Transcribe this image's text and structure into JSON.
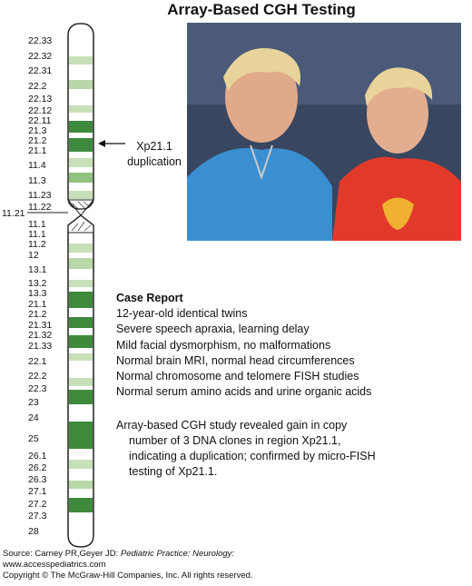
{
  "title": "Array-Based CGH Testing",
  "ideogram": {
    "centromere_label": "11.21",
    "p_arm_bands": [
      "22.33",
      "22.32",
      "22.31",
      "22.2",
      "22.13",
      "22.12",
      "22.11",
      "21.3",
      "21.2",
      "21.1",
      "11.4",
      "11.3",
      "11.23",
      "11.22"
    ],
    "q_arm_bands": [
      "11.1",
      "11.1",
      "11.2",
      "12",
      "13.1",
      "13.2",
      "13.3",
      "21.1",
      "21.2",
      "21.31",
      "21.32",
      "21.33",
      "22.1",
      "22.2",
      "22.3",
      "23",
      "24",
      "25",
      "26.1",
      "26.2",
      "26.3",
      "27.1",
      "27.2",
      "27.3",
      "28"
    ],
    "colors": {
      "dark": "#3d8a3d",
      "light": "#b8d8a8",
      "outline": "#222222"
    }
  },
  "annotation": {
    "line1": "Xp21.1",
    "line2": "duplication"
  },
  "photo": {
    "description_icon": "twins-photo"
  },
  "case_report": {
    "heading": "Case Report",
    "lines": [
      "12-year-old identical twins",
      "Severe speech apraxia, learning delay",
      "Mild facial dysmorphism, no malformations",
      "Normal brain MRI, normal head circumferences",
      "Normal chromosome and telomere FISH studies",
      "Normal serum amino acids and urine organic acids"
    ]
  },
  "summary": {
    "line1": "Array-based CGH study revealed gain in copy",
    "line2": "number of 3 DNA clones in region Xp21.1,",
    "line3": "indicating a duplication; confirmed by micro-FISH",
    "line4": "testing of Xp21.1."
  },
  "footer": {
    "source_prefix": "Source: Carney PR,Geyer JD: ",
    "source_title": "Pediatric Practice: Neurology:",
    "website": "www.accesspediatrics.com",
    "copyright": "Copyright © The McGraw-Hill Companies, Inc. All rights reserved."
  }
}
